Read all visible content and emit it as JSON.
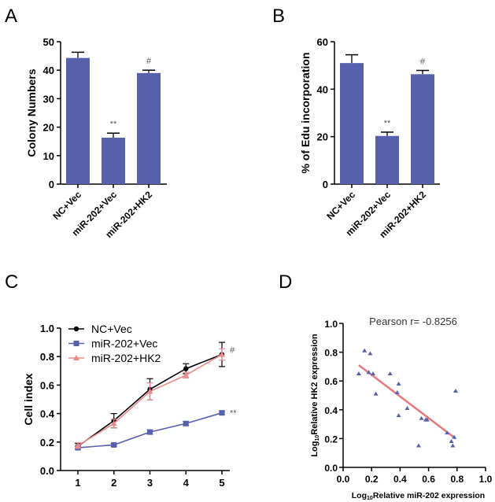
{
  "colors": {
    "bar": "#5660ac",
    "black": "#000000",
    "blue": "#5660ac",
    "pink": "#e88a8e",
    "fit": "#e6787c",
    "annot": "#555555"
  },
  "chart_data": [
    {
      "panel": "A",
      "type": "bar",
      "categories": [
        "NC+Vec",
        "miR-202+Vec",
        "miR-202+HK2"
      ],
      "values": [
        44.3,
        16.3,
        39.0
      ],
      "errors": [
        2.0,
        1.6,
        1.0
      ],
      "annotations": [
        "",
        "**",
        "#"
      ],
      "ylabel": "Colony Numbers",
      "ylim": [
        0,
        50
      ],
      "yticks": [
        0,
        10,
        20,
        30,
        40,
        50
      ]
    },
    {
      "panel": "B",
      "type": "bar",
      "categories": [
        "NC+Vec",
        "miR-202+Vec",
        "miR-202+HK2"
      ],
      "values": [
        51.0,
        20.3,
        46.3
      ],
      "errors": [
        3.5,
        1.6,
        1.6
      ],
      "annotations": [
        "",
        "**",
        "#"
      ],
      "ylabel": "% of Edu incorporation",
      "ylim": [
        0,
        60
      ],
      "yticks": [
        0,
        20,
        40,
        60
      ]
    },
    {
      "panel": "C",
      "type": "line",
      "x": [
        1,
        2,
        3,
        4,
        5
      ],
      "series": [
        {
          "name": "NC+Vec",
          "values": [
            0.17,
            0.35,
            0.57,
            0.715,
            0.815
          ],
          "errors": [
            0.02,
            0.05,
            0.075,
            0.035,
            0.085
          ],
          "marker": "circle",
          "color": "#000000"
        },
        {
          "name": "miR-202+Vec",
          "values": [
            0.16,
            0.18,
            0.27,
            0.33,
            0.405
          ],
          "errors": [
            0.01,
            0.01,
            0.015,
            0.015,
            0.01
          ],
          "marker": "square",
          "color": "#5660ac"
        },
        {
          "name": "miR-202+HK2",
          "values": [
            0.175,
            0.33,
            0.555,
            0.67,
            0.815
          ],
          "errors": [
            0.02,
            0.03,
            0.06,
            0.02,
            0.04
          ],
          "marker": "triangle",
          "color": "#e88a8e"
        }
      ],
      "annotations": [
        {
          "series": "miR-202+HK2",
          "text": "#"
        },
        {
          "series": "miR-202+Vec",
          "text": "**"
        }
      ],
      "ylabel": "Cell index",
      "ylim": [
        0,
        1.0
      ],
      "yticks": [
        "0.0",
        "0.2",
        "0.4",
        "0.6",
        "0.8",
        "1.0"
      ],
      "xticks": [
        "1",
        "2",
        "3",
        "4",
        "5"
      ],
      "legend": "top-left"
    },
    {
      "panel": "D",
      "type": "scatter",
      "title": "Pearson r= -0.8256",
      "points": [
        [
          0.11,
          0.65
        ],
        [
          0.15,
          0.81
        ],
        [
          0.19,
          0.79
        ],
        [
          0.18,
          0.66
        ],
        [
          0.21,
          0.65
        ],
        [
          0.23,
          0.51
        ],
        [
          0.33,
          0.65
        ],
        [
          0.39,
          0.58
        ],
        [
          0.38,
          0.52
        ],
        [
          0.39,
          0.36
        ],
        [
          0.45,
          0.41
        ],
        [
          0.53,
          0.15
        ],
        [
          0.55,
          0.34
        ],
        [
          0.58,
          0.33
        ],
        [
          0.59,
          0.33
        ],
        [
          0.73,
          0.24
        ],
        [
          0.76,
          0.18
        ],
        [
          0.77,
          0.15
        ],
        [
          0.78,
          0.21
        ],
        [
          0.79,
          0.53
        ]
      ],
      "fit_line": [
        [
          0.11,
          0.71
        ],
        [
          0.79,
          0.2
        ]
      ],
      "xlabel_prefix": "Log",
      "xlabel_sub": "10",
      "xlabel_rest": "Relative miR-202 expression",
      "ylabel_prefix": "Log",
      "ylabel_sub": "10",
      "ylabel_rest": "Relative HK2 expression",
      "xlim": [
        0,
        1.0
      ],
      "ylim": [
        0,
        1.0
      ],
      "xticks": [
        "0.0",
        "0.2",
        "0.4",
        "0.6",
        "0.8",
        "1.0"
      ],
      "yticks": [
        "0.0",
        "0.2",
        "0.4",
        "0.6",
        "0.8",
        "1.0"
      ]
    }
  ]
}
